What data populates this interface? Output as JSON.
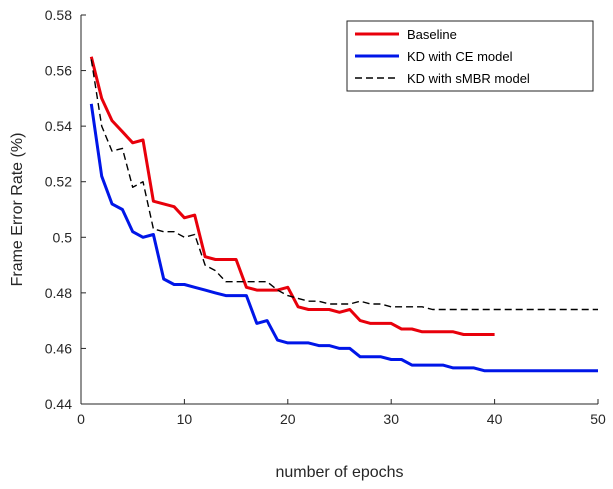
{
  "chart_data": {
    "type": "line",
    "title": "",
    "xlabel": "number of epochs",
    "ylabel": "Frame Error Rate (%)",
    "xlim": [
      0,
      50
    ],
    "ylim": [
      0.44,
      0.58
    ],
    "xticks": [
      0,
      10,
      20,
      30,
      40,
      50
    ],
    "yticks": [
      0.44,
      0.46,
      0.48,
      0.5,
      0.52,
      0.54,
      0.56,
      0.58
    ],
    "xtick_labels": [
      "0",
      "10",
      "20",
      "30",
      "40",
      "50"
    ],
    "ytick_labels": [
      "0.44",
      "0.46",
      "0.48",
      "0.5",
      "0.52",
      "0.54",
      "0.56",
      "0.58"
    ],
    "grid": false,
    "legend_position": "top-right",
    "series": [
      {
        "name": "Baseline",
        "color": "#e8000b",
        "style": "solid",
        "x": [
          1,
          2,
          3,
          4,
          5,
          6,
          7,
          8,
          9,
          10,
          11,
          12,
          13,
          14,
          15,
          16,
          17,
          18,
          19,
          20,
          21,
          22,
          23,
          24,
          25,
          26,
          27,
          28,
          29,
          30,
          31,
          32,
          33,
          34,
          35,
          36,
          37,
          38,
          39,
          40
        ],
        "y": [
          0.565,
          0.55,
          0.542,
          0.538,
          0.534,
          0.535,
          0.513,
          0.512,
          0.511,
          0.507,
          0.508,
          0.493,
          0.492,
          0.492,
          0.492,
          0.482,
          0.481,
          0.481,
          0.481,
          0.482,
          0.475,
          0.474,
          0.474,
          0.474,
          0.473,
          0.474,
          0.47,
          0.469,
          0.469,
          0.469,
          0.467,
          0.467,
          0.466,
          0.466,
          0.466,
          0.466,
          0.465,
          0.465,
          0.465,
          0.465
        ]
      },
      {
        "name": "KD with CE model",
        "color": "#0016e8",
        "style": "solid",
        "x": [
          1,
          2,
          3,
          4,
          5,
          6,
          7,
          8,
          9,
          10,
          11,
          12,
          13,
          14,
          15,
          16,
          17,
          18,
          19,
          20,
          21,
          22,
          23,
          24,
          25,
          26,
          27,
          28,
          29,
          30,
          31,
          32,
          33,
          34,
          35,
          36,
          37,
          38,
          39,
          40,
          41,
          42,
          43,
          44,
          45,
          46,
          47,
          48,
          49,
          50
        ],
        "y": [
          0.548,
          0.522,
          0.512,
          0.51,
          0.502,
          0.5,
          0.501,
          0.485,
          0.483,
          0.483,
          0.482,
          0.481,
          0.48,
          0.479,
          0.479,
          0.479,
          0.469,
          0.47,
          0.463,
          0.462,
          0.462,
          0.462,
          0.461,
          0.461,
          0.46,
          0.46,
          0.457,
          0.457,
          0.457,
          0.456,
          0.456,
          0.454,
          0.454,
          0.454,
          0.454,
          0.453,
          0.453,
          0.453,
          0.452,
          0.452,
          0.452,
          0.452,
          0.452,
          0.452,
          0.452,
          0.452,
          0.452,
          0.452,
          0.452,
          0.452
        ]
      },
      {
        "name": "KD with sMBR model",
        "color": "#000000",
        "style": "dashed",
        "x": [
          1,
          2,
          3,
          4,
          5,
          6,
          7,
          8,
          9,
          10,
          11,
          12,
          13,
          14,
          15,
          16,
          17,
          18,
          19,
          20,
          21,
          22,
          23,
          24,
          25,
          26,
          27,
          28,
          29,
          30,
          31,
          32,
          33,
          34,
          35,
          36,
          37,
          38,
          39,
          40,
          41,
          42,
          43,
          44,
          45,
          46,
          47,
          48,
          49,
          50
        ],
        "y": [
          0.564,
          0.54,
          0.531,
          0.532,
          0.518,
          0.52,
          0.503,
          0.502,
          0.502,
          0.5,
          0.501,
          0.49,
          0.488,
          0.484,
          0.484,
          0.484,
          0.484,
          0.484,
          0.481,
          0.479,
          0.478,
          0.477,
          0.477,
          0.476,
          0.476,
          0.476,
          0.477,
          0.476,
          0.476,
          0.475,
          0.475,
          0.475,
          0.475,
          0.474,
          0.474,
          0.474,
          0.474,
          0.474,
          0.474,
          0.474,
          0.474,
          0.474,
          0.474,
          0.474,
          0.474,
          0.474,
          0.474,
          0.474,
          0.474,
          0.474
        ]
      }
    ]
  }
}
